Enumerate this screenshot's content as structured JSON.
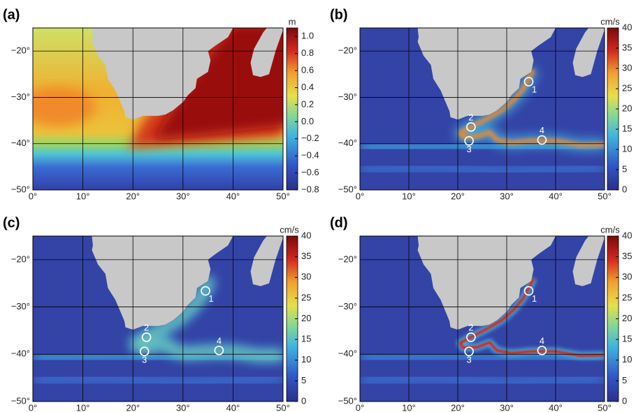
{
  "chart_data": [
    {
      "type": "heatmap",
      "panel_label": "(a)",
      "colorbar_label": "m",
      "xlim": [
        0,
        50
      ],
      "ylim": [
        -50,
        -15
      ],
      "grid": true,
      "xticks": [
        {
          "value": 0,
          "label": "0°"
        },
        {
          "value": 10,
          "label": "10°"
        },
        {
          "value": 20,
          "label": "20°"
        },
        {
          "value": 30,
          "label": "30°"
        },
        {
          "value": 40,
          "label": "40°"
        },
        {
          "value": 50,
          "label": "50°"
        }
      ],
      "yticks": [
        {
          "value": -50,
          "label": "−50°"
        },
        {
          "value": -40,
          "label": "−40°"
        },
        {
          "value": -30,
          "label": "−30°"
        },
        {
          "value": -20,
          "label": "−20°"
        }
      ],
      "clim": [
        -0.8,
        1.1
      ],
      "cticks": [
        {
          "value": -0.8,
          "label": "−0.8"
        },
        {
          "value": -0.6,
          "label": "−0.6"
        },
        {
          "value": -0.4,
          "label": "−0.4"
        },
        {
          "value": -0.2,
          "label": "−0.2"
        },
        {
          "value": 0,
          "label": "0.0"
        },
        0.2,
        0.4,
        0.6,
        0.8,
        {
          "value": 1,
          "label": "1.0"
        }
      ]
    },
    {
      "type": "heatmap",
      "panel_label": "(b)",
      "colorbar_label": "cm/s",
      "xlim": [
        0,
        50
      ],
      "ylim": [
        -50,
        -15
      ],
      "grid": true,
      "xticks": [
        {
          "value": 0,
          "label": "0°"
        },
        {
          "value": 10,
          "label": "10°"
        },
        {
          "value": 20,
          "label": "20°"
        },
        {
          "value": 30,
          "label": "30°"
        },
        {
          "value": 40,
          "label": "40°"
        },
        {
          "value": 50,
          "label": "50°"
        }
      ],
      "yticks": [
        {
          "value": -50,
          "label": "−50°"
        },
        {
          "value": -40,
          "label": "−40°"
        },
        {
          "value": -30,
          "label": "−30°"
        },
        {
          "value": -20,
          "label": "−20°"
        }
      ],
      "clim": [
        0,
        40
      ],
      "cticks": [
        0,
        5,
        10,
        15,
        20,
        25,
        30,
        35,
        40
      ],
      "stations": [
        {
          "label": "1",
          "lon": 34.5,
          "lat": -26.6
        },
        {
          "label": "2",
          "lon": 22.7,
          "lat": -36.4
        },
        {
          "label": "3",
          "lon": 22.3,
          "lat": -39.4
        },
        {
          "label": "4",
          "lon": 37.2,
          "lat": -39.2
        }
      ]
    },
    {
      "type": "heatmap",
      "panel_label": "(c)",
      "colorbar_label": "cm/s",
      "xlim": [
        0,
        50
      ],
      "ylim": [
        -50,
        -15
      ],
      "grid": true,
      "xticks": [
        {
          "value": 0,
          "label": "0°"
        },
        {
          "value": 10,
          "label": "10°"
        },
        {
          "value": 20,
          "label": "20°"
        },
        {
          "value": 30,
          "label": "30°"
        },
        {
          "value": 40,
          "label": "40°"
        },
        {
          "value": 50,
          "label": "50°"
        }
      ],
      "yticks": [
        {
          "value": -50,
          "label": "−50°"
        },
        {
          "value": -40,
          "label": "−40°"
        },
        {
          "value": -30,
          "label": "−30°"
        },
        {
          "value": -20,
          "label": "−20°"
        }
      ],
      "clim": [
        0,
        40
      ],
      "cticks": [
        0,
        5,
        10,
        15,
        20,
        25,
        30,
        35,
        40
      ],
      "stations": [
        {
          "label": "1",
          "lon": 34.5,
          "lat": -26.6
        },
        {
          "label": "2",
          "lon": 22.7,
          "lat": -36.4
        },
        {
          "label": "3",
          "lon": 22.3,
          "lat": -39.4
        },
        {
          "label": "4",
          "lon": 37.2,
          "lat": -39.2
        }
      ]
    },
    {
      "type": "heatmap",
      "panel_label": "(d)",
      "colorbar_label": "cm/s",
      "xlim": [
        0,
        50
      ],
      "ylim": [
        -50,
        -15
      ],
      "grid": true,
      "xticks": [
        {
          "value": 0,
          "label": "0°"
        },
        {
          "value": 10,
          "label": "10°"
        },
        {
          "value": 20,
          "label": "20°"
        },
        {
          "value": 30,
          "label": "30°"
        },
        {
          "value": 40,
          "label": "40°"
        },
        {
          "value": 50,
          "label": "50°"
        }
      ],
      "yticks": [
        {
          "value": -50,
          "label": "−50°"
        },
        {
          "value": -40,
          "label": "−40°"
        },
        {
          "value": -30,
          "label": "−30°"
        },
        {
          "value": -20,
          "label": "−20°"
        }
      ],
      "clim": [
        0,
        40
      ],
      "cticks": [
        0,
        5,
        10,
        15,
        20,
        25,
        30,
        35,
        40
      ],
      "stations": [
        {
          "label": "1",
          "lon": 34.5,
          "lat": -26.6
        },
        {
          "label": "2",
          "lon": 22.7,
          "lat": -36.4
        },
        {
          "label": "3",
          "lon": 22.3,
          "lat": -39.4
        },
        {
          "label": "4",
          "lon": 37.2,
          "lat": -39.2
        }
      ]
    }
  ]
}
